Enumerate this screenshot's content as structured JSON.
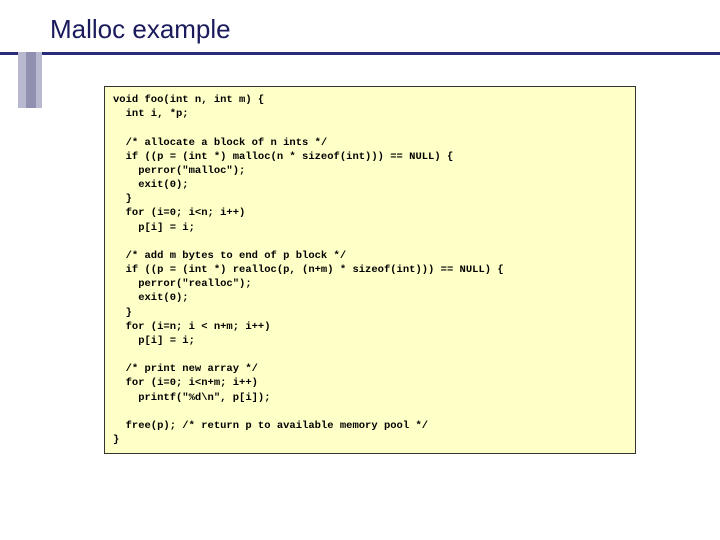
{
  "slide": {
    "title": "Malloc example",
    "title_color": "#1a1a5c",
    "title_fontsize": 26,
    "underline_color": "#2a2a7a",
    "sidebar_outer_color": "#b8b8d0",
    "sidebar_inner_color": "#9090b0",
    "background_color": "#ffffff"
  },
  "code_block": {
    "background_color": "#ffffc8",
    "border_color": "#333333",
    "font_family": "Courier New",
    "font_size": 10.5,
    "font_weight": "bold",
    "text_color": "#000000",
    "content": "void foo(int n, int m) {\n  int i, *p;\n\n  /* allocate a block of n ints */\n  if ((p = (int *) malloc(n * sizeof(int))) == NULL) {\n    perror(\"malloc\");\n    exit(0);\n  }\n  for (i=0; i<n; i++)\n    p[i] = i;\n\n  /* add m bytes to end of p block */\n  if ((p = (int *) realloc(p, (n+m) * sizeof(int))) == NULL) {\n    perror(\"realloc\");\n    exit(0);\n  }\n  for (i=n; i < n+m; i++)\n    p[i] = i;\n\n  /* print new array */\n  for (i=0; i<n+m; i++)\n    printf(\"%d\\n\", p[i]);\n\n  free(p); /* return p to available memory pool */\n}"
  }
}
